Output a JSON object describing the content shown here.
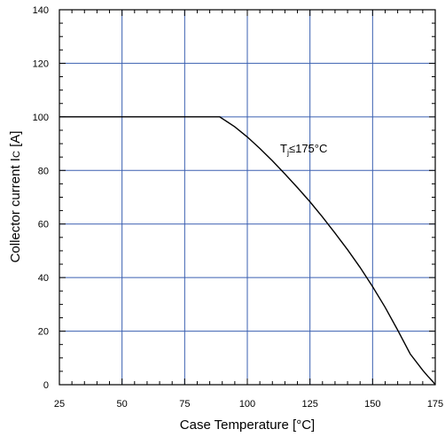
{
  "chart_data": {
    "type": "line",
    "xlabel": "Case Temperature [°C]",
    "ylabel": "Collector current Ic [A]",
    "ylabel_main": "Collector current I",
    "ylabel_sub": "C",
    "ylabel_unit": " [A]",
    "xlim": [
      25,
      175
    ],
    "ylim": [
      0,
      140
    ],
    "xticks": [
      25,
      50,
      75,
      100,
      125,
      150,
      175
    ],
    "yticks": [
      0,
      20,
      40,
      60,
      80,
      100,
      120,
      140
    ],
    "grid": true,
    "grid_color": "#3a5fb0",
    "line_color": "#000000",
    "series": [
      {
        "x": [
          25,
          89,
          95,
          100,
          105,
          110,
          115,
          120,
          125,
          130,
          135,
          140,
          145,
          150,
          155,
          160,
          165,
          170,
          172,
          174,
          175
        ],
        "y": [
          100,
          100,
          96.3,
          92.5,
          88.2,
          83.6,
          78.7,
          73.6,
          68.3,
          62.6,
          56.6,
          50.4,
          43.8,
          36.6,
          28.9,
          20.4,
          11.5,
          5.4,
          3.2,
          1.2,
          0
        ]
      }
    ],
    "annotation": {
      "text_main": "T",
      "text_sub": "j",
      "text_rest": "≤175°C"
    }
  }
}
